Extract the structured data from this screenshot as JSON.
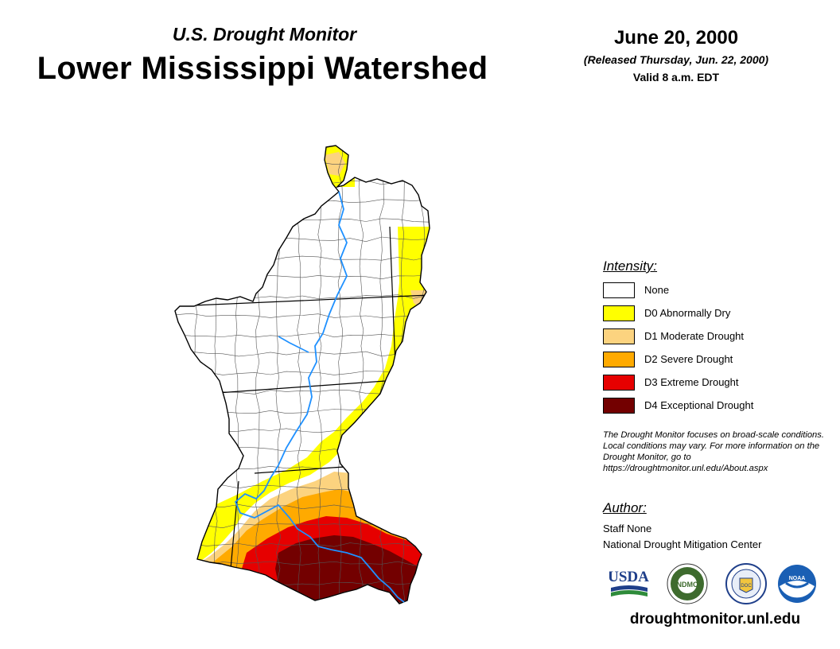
{
  "header": {
    "subtitle": "U.S. Drought Monitor",
    "title": "Lower Mississippi Watershed",
    "date": "June 20, 2000",
    "released": "(Released Thursday, Jun. 22, 2000)",
    "valid": "Valid 8 a.m. EDT"
  },
  "legend": {
    "heading": "Intensity:",
    "items": [
      {
        "label": "None",
        "color": "#ffffff"
      },
      {
        "label": "D0 Abnormally Dry",
        "color": "#ffff00"
      },
      {
        "label": "D1 Moderate Drought",
        "color": "#fcd37f"
      },
      {
        "label": "D2 Severe Drought",
        "color": "#ffaa00"
      },
      {
        "label": "D3 Extreme Drought",
        "color": "#e60000"
      },
      {
        "label": "D4 Exceptional Drought",
        "color": "#730000"
      }
    ]
  },
  "disclaimer": "The Drought Monitor focuses on broad-scale conditions. Local conditions may vary. For more information on the Drought Monitor, go to https://droughtmonitor.unl.edu/About.aspx",
  "author": {
    "heading": "Author:",
    "name": "Staff None",
    "org": "National Drought Mitigation Center"
  },
  "logos": {
    "usda": "USDA",
    "ndmc": "NDMC",
    "doc": "DOC",
    "noaa": "NOAA"
  },
  "website": "droughtmonitor.unl.edu",
  "colors": {
    "river": "#1e90ff",
    "boundary": "#000000",
    "county": "#555555"
  }
}
